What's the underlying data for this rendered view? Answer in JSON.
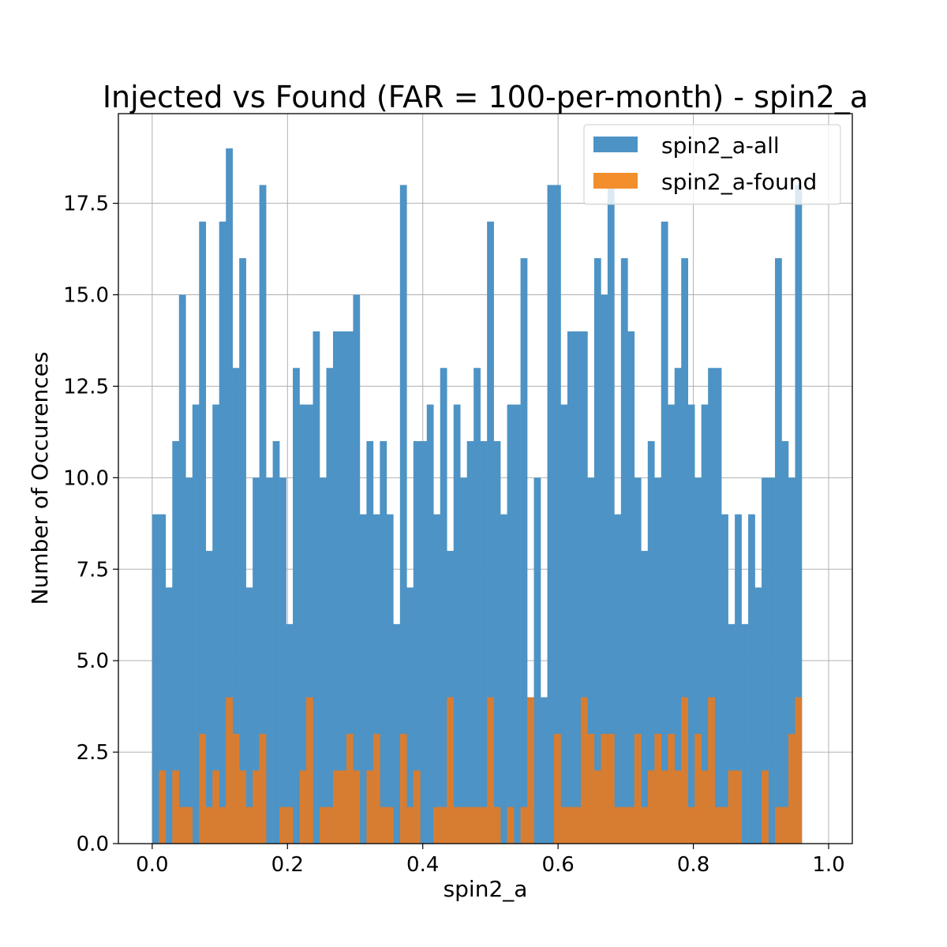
{
  "chart_data": {
    "type": "bar",
    "title": "Injected vs Found (FAR = 100-per-month) - spin2_a",
    "xlabel": "spin2_a",
    "ylabel": "Number of Occurences",
    "xlim": [
      -0.05,
      1.035
    ],
    "ylim": [
      0,
      19.95
    ],
    "xticks": [
      "0.0",
      "0.2",
      "0.4",
      "0.6",
      "0.8",
      "1.0"
    ],
    "xtick_values": [
      0.0,
      0.2,
      0.4,
      0.6,
      0.8,
      1.0
    ],
    "yticks": [
      "0.0",
      "2.5",
      "5.0",
      "7.5",
      "10.0",
      "12.5",
      "15.0",
      "17.5"
    ],
    "ytick_values": [
      0.0,
      2.5,
      5.0,
      7.5,
      10.0,
      12.5,
      15.0,
      17.5
    ],
    "grid": true,
    "legend_position": "top-right",
    "bin_start": 0.0,
    "bin_width": 0.0099,
    "series": [
      {
        "name": "spin2_a-all",
        "color": "#4d93c5",
        "values": [
          9,
          9,
          7,
          11,
          15,
          10,
          12,
          17,
          8,
          12,
          17,
          19,
          13,
          16,
          7,
          10,
          18,
          10,
          11,
          10,
          6,
          13,
          12,
          12,
          14,
          10,
          13,
          14,
          14,
          14,
          15,
          9,
          11,
          9,
          11,
          9,
          6,
          18,
          7,
          11,
          11,
          12,
          9,
          13,
          8,
          12,
          10,
          11,
          13,
          11,
          17,
          11,
          9,
          12,
          12,
          16,
          4,
          10,
          4,
          18,
          18,
          12,
          14,
          14,
          14,
          10,
          16,
          15,
          18,
          9,
          16,
          14,
          10,
          8,
          11,
          10,
          17,
          12,
          13,
          16,
          12,
          10,
          12,
          13,
          13,
          9,
          6,
          9,
          6,
          9,
          7,
          10,
          10,
          16,
          11,
          10,
          18
        ]
      },
      {
        "name": "spin2_a-found",
        "color": "#f28e2b",
        "overlap_color": "#d77d32",
        "values": [
          0,
          2,
          0,
          2,
          1,
          1,
          0,
          3,
          1,
          2,
          1,
          4,
          3,
          2,
          1,
          2,
          3,
          0,
          0,
          1,
          1,
          0,
          2,
          4,
          0,
          1,
          1,
          2,
          2,
          3,
          2,
          0,
          2,
          3,
          1,
          1,
          0,
          3,
          1,
          2,
          0,
          0,
          1,
          1,
          4,
          1,
          1,
          1,
          1,
          1,
          4,
          1,
          0,
          1,
          0,
          1,
          4,
          0,
          0,
          0,
          3,
          1,
          1,
          1,
          4,
          3,
          2,
          3,
          3,
          1,
          1,
          1,
          3,
          1,
          2,
          3,
          2,
          3,
          2,
          4,
          1,
          3,
          2,
          4,
          1,
          1,
          2,
          2,
          0,
          0,
          0,
          2,
          0,
          1,
          1,
          3,
          4
        ]
      }
    ]
  }
}
